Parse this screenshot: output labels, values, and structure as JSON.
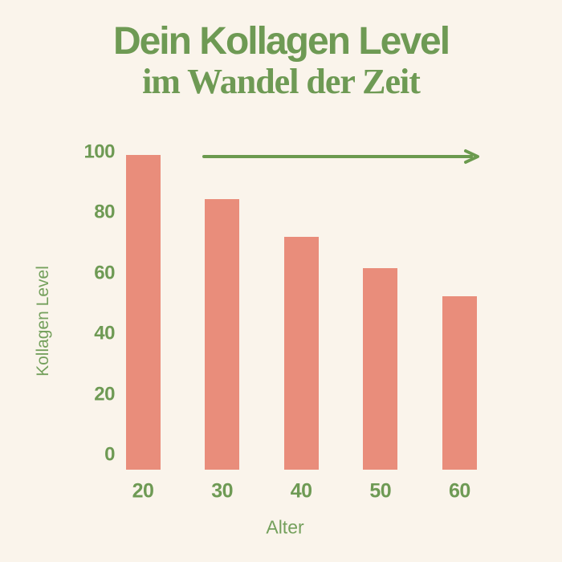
{
  "header": {
    "title_line1": "Dein Kollagen Level",
    "title_line2": "im Wandel der Zeit"
  },
  "colors": {
    "background": "#FAF4EB",
    "bar": "#E98D7B",
    "text_green": "#6E9A54",
    "axis_label_green": "#74A05C",
    "arrow_green": "#6B9A4E"
  },
  "icons": {
    "trend_arrow": "right-arrow-icon"
  },
  "chart_data": {
    "type": "bar",
    "title": "Dein Kollagen Level im Wandel der Zeit",
    "categories": [
      "20",
      "30",
      "40",
      "50",
      "60"
    ],
    "values": [
      100,
      86,
      74,
      64,
      55
    ],
    "xlabel": "Alter",
    "ylabel": "Kollagen Level",
    "ylim": [
      0,
      100
    ],
    "yticks": [
      0,
      20,
      40,
      60,
      80,
      100
    ],
    "grid": false,
    "legend": false,
    "bar_color": "#E98D7B",
    "annotations": [
      {
        "type": "arrow",
        "direction": "right",
        "position": "above-bars-top"
      }
    ]
  }
}
